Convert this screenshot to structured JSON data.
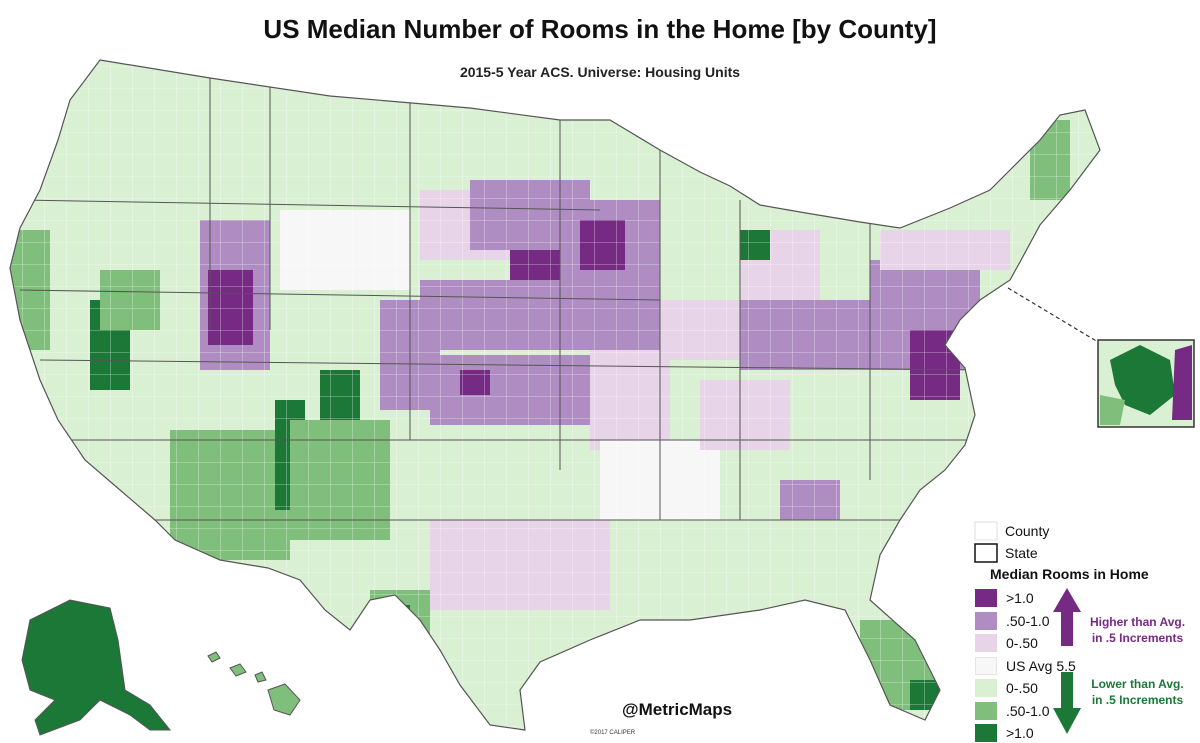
{
  "title": "US Median Number of Rooms in the Home [by County]",
  "subtitle": "2015-5 Year ACS.  Universe:  Housing Units",
  "colors": {
    "higher_gt_1": "#762a83",
    "higher_50_100": "#af8dc3",
    "higher_0_50": "#e7d4e8",
    "average": "#f7f7f7",
    "lower_0_50": "#d9f0d3",
    "lower_50_100": "#7fbf7b",
    "lower_gt_1": "#1b7837",
    "border": "#555555"
  },
  "legend": {
    "county_label": "County",
    "state_label": "State",
    "heading": "Median Rooms in Home",
    "items": [
      {
        "label": ">1.0",
        "color_key": "higher_gt_1"
      },
      {
        "label": ".50-1.0",
        "color_key": "higher_50_100"
      },
      {
        "label": "0-.50",
        "color_key": "higher_0_50"
      },
      {
        "label": "US Avg 5.5",
        "color_key": "average"
      },
      {
        "label": "0-.50",
        "color_key": "lower_0_50"
      },
      {
        "label": ".50-1.0",
        "color_key": "lower_50_100"
      },
      {
        "label": ">1.0",
        "color_key": "lower_gt_1"
      }
    ],
    "higher_note_line1": "Higher than Avg.",
    "higher_note_line2": "in .5 Increments",
    "lower_note_line1": "Lower than Avg.",
    "lower_note_line2": "in .5 Increments"
  },
  "handle": "@MetricMaps",
  "credit": "©2017 CALIPER"
}
